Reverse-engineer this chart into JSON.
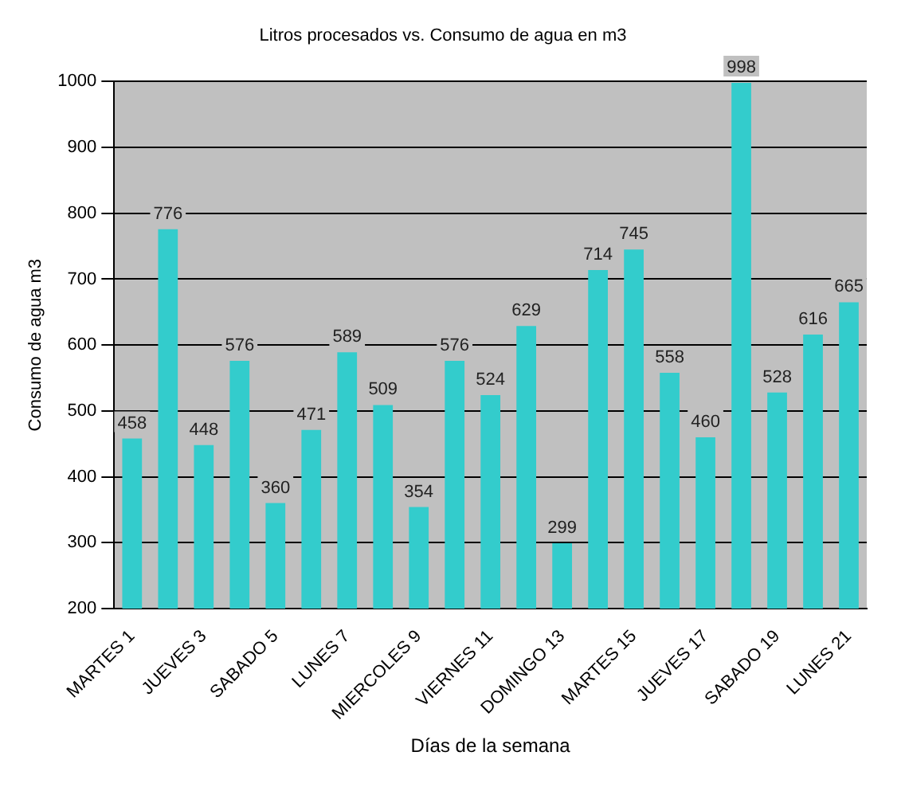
{
  "chart_data": {
    "type": "bar",
    "title": "Litros procesados vs. Consumo de agua en m3",
    "xlabel": "Días de la semana",
    "ylabel": "Consumo de agua m3",
    "categories": [
      "MARTES 1",
      null,
      "JUEVES 3",
      null,
      "SABADO 5",
      null,
      "LUNES 7",
      null,
      "MIERCOLES 9",
      null,
      "VIERNES 11",
      null,
      "DOMINGO 13",
      null,
      "MARTES 15",
      null,
      "JUEVES 17",
      null,
      "SABADO 19",
      null,
      "LUNES 21"
    ],
    "values": [
      458,
      776,
      448,
      576,
      360,
      471,
      589,
      509,
      354,
      576,
      524,
      629,
      299,
      714,
      745,
      558,
      460,
      998,
      528,
      616,
      665
    ],
    "color": "#33cccc",
    "ylim": [
      200,
      1000
    ],
    "yticks": [
      200,
      300,
      400,
      500,
      600,
      700,
      800,
      900,
      1000
    ],
    "grid": "y",
    "data_labels": true,
    "legend": false
  }
}
